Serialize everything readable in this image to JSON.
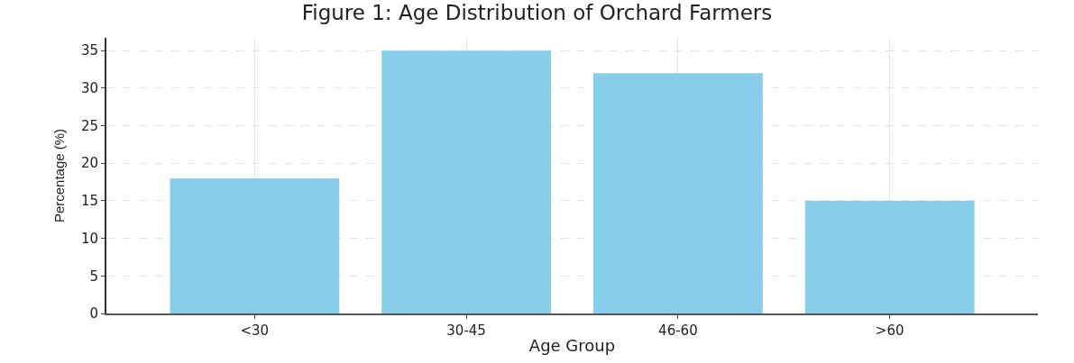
{
  "chart_data": {
    "type": "bar",
    "title": "Figure 1: Age Distribution of Orchard Farmers",
    "xlabel": "Age Group",
    "ylabel": "Percentage (%)",
    "categories": [
      "<30",
      "30-45",
      "46-60",
      ">60"
    ],
    "values": [
      18,
      35,
      32,
      15
    ],
    "color": "#87ceeb",
    "ylim": [
      0,
      36.7
    ],
    "yticks": [
      0,
      5,
      10,
      15,
      20,
      25,
      30,
      35
    ],
    "grid": true
  }
}
